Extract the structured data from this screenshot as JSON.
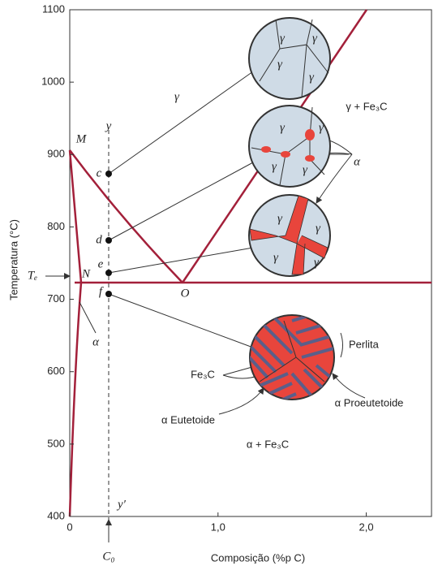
{
  "axes": {
    "x_label": "Composição (%p C)",
    "y_label": "Temperatura (°C)",
    "xlim": [
      0,
      2.44
    ],
    "xticks": [
      0,
      {
        "value": 1,
        "label": "1,0"
      },
      {
        "value": 2,
        "label": "2,0"
      }
    ],
    "ylim": [
      400,
      1100
    ],
    "yticks": [
      400,
      500,
      600,
      700,
      800,
      900,
      1000,
      1100
    ]
  },
  "regions": {
    "gamma": "γ",
    "gamma_fe3c": "γ + Fe₃C",
    "alpha_fe3c": "α + Fe₃C",
    "alpha": "α"
  },
  "points": {
    "M": "M",
    "N": "N",
    "O": "O",
    "c": "c",
    "d": "d",
    "e": "e",
    "f": "f"
  },
  "section_line": {
    "top": "y",
    "bottom": "y′",
    "composition": "C₀"
  },
  "eutectoid_temperature": "Tₑ",
  "circles": [
    {
      "labels": [
        "γ",
        "γ",
        "γ",
        "γ"
      ]
    },
    {
      "labels": [
        "γ",
        "γ",
        "γ",
        "γ"
      ],
      "pointer": "α"
    },
    {
      "labels": [
        "γ",
        "γ",
        "γ",
        "γ"
      ]
    }
  ],
  "pearlite": {
    "perlita": "Perlita",
    "fe3c": "Fe₃C",
    "eutectoid_alpha": "α Eutetoide",
    "proeutectoid_alpha": "α Proeutetoide"
  }
}
